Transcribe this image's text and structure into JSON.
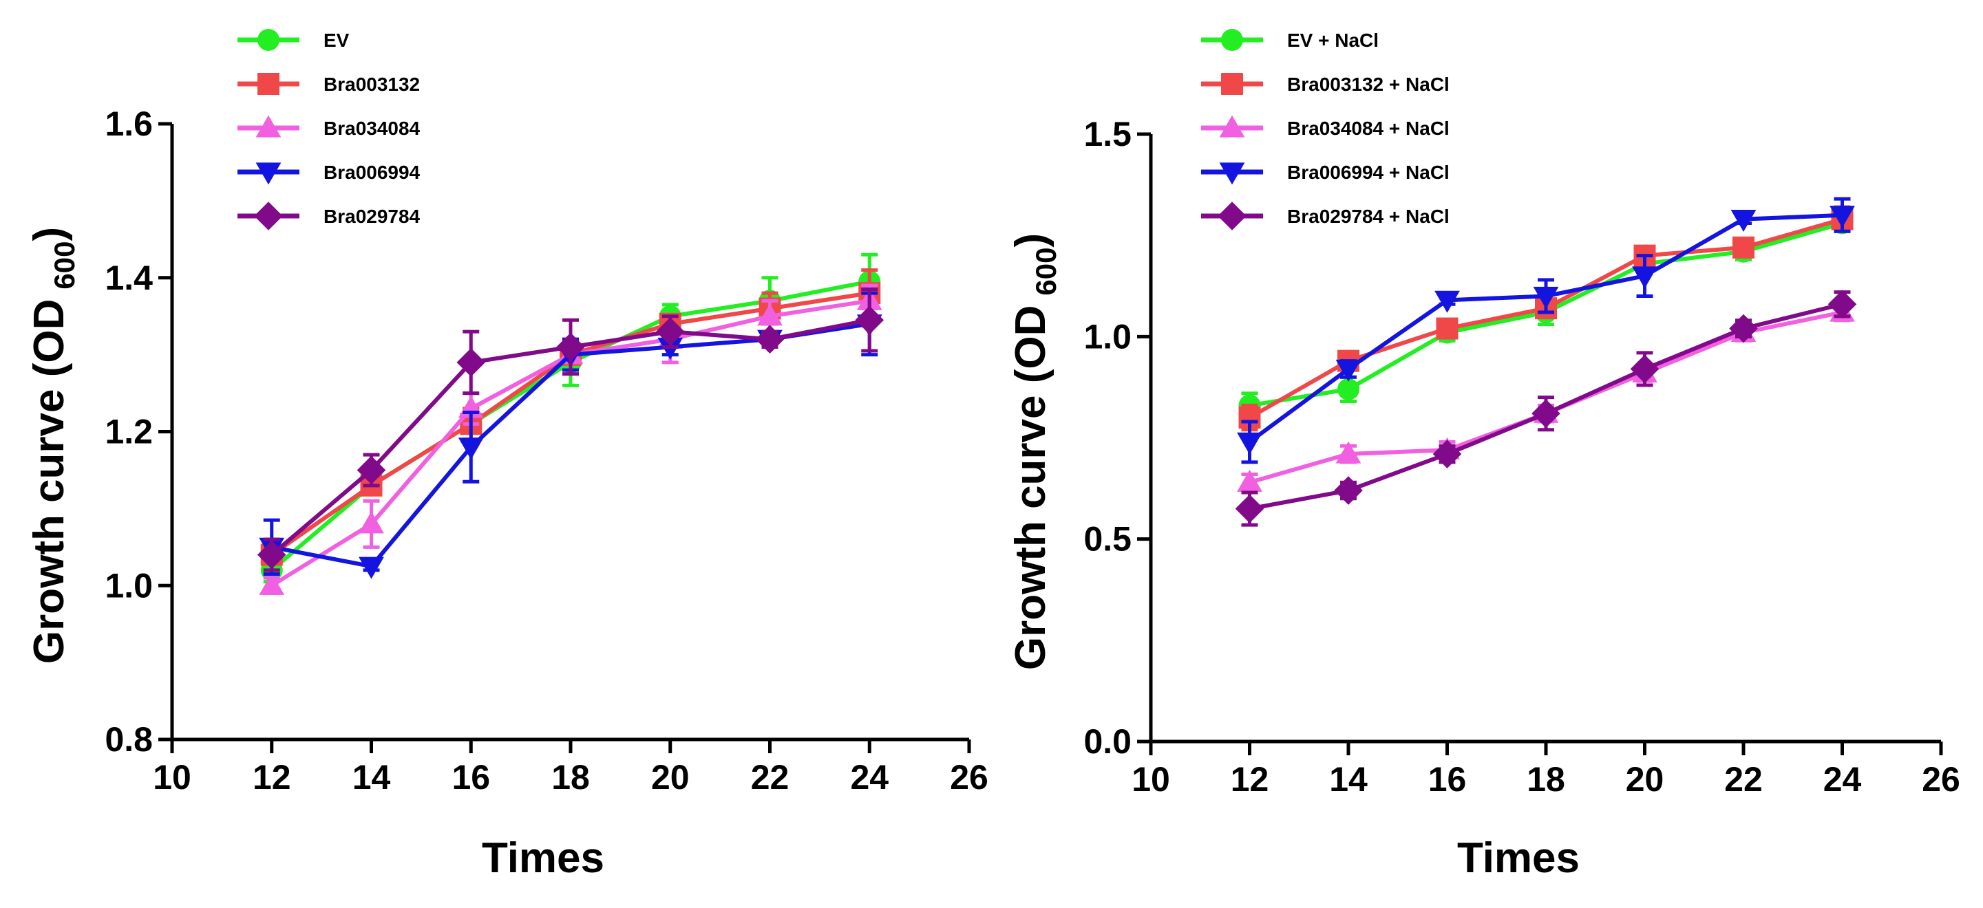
{
  "chart_data": [
    {
      "type": "line",
      "title": "",
      "xlabel": "Times",
      "ylabel": "Growth curve (OD",
      "ylabel_subscript": "600",
      "xlim": [
        10,
        26
      ],
      "ylim": [
        0.8,
        1.6
      ],
      "x_ticks": [
        10,
        12,
        14,
        16,
        18,
        20,
        22,
        24,
        26
      ],
      "y_ticks": [
        0.8,
        1.0,
        1.2,
        1.4,
        1.6
      ],
      "x_tick_labels": [
        "10",
        "12",
        "14",
        "16",
        "18",
        "20",
        "22",
        "24",
        "26"
      ],
      "y_tick_labels": [
        "0.8",
        "1.0",
        "1.2",
        "1.4",
        "1.6"
      ],
      "legend_position": "top-left",
      "grid": false,
      "x": [
        12,
        14,
        16,
        18,
        20,
        22,
        24
      ],
      "series": [
        {
          "name": "EV",
          "color": "#22ee22",
          "marker": "circle",
          "values": [
            1.02,
            1.13,
            1.21,
            1.29,
            1.35,
            1.37,
            1.395
          ],
          "errors": [
            0.015,
            0.01,
            0.02,
            0.03,
            0.015,
            0.03,
            0.035
          ]
        },
        {
          "name": "Bra003132",
          "color": "#f04848",
          "marker": "square",
          "values": [
            1.04,
            1.13,
            1.21,
            1.3,
            1.34,
            1.36,
            1.38
          ],
          "errors": [
            0.02,
            0.01,
            0.02,
            0.02,
            0.01,
            0.02,
            0.03
          ]
        },
        {
          "name": "Bra034084",
          "color": "#f060e0",
          "marker": "triangle-up",
          "values": [
            1.0,
            1.08,
            1.23,
            1.3,
            1.32,
            1.35,
            1.37
          ],
          "errors": [
            0.01,
            0.03,
            0.02,
            0.02,
            0.03,
            0.02,
            0.02
          ]
        },
        {
          "name": "Bra006994",
          "color": "#1414e0",
          "marker": "triangle-down",
          "values": [
            1.05,
            1.025,
            1.18,
            1.3,
            1.31,
            1.32,
            1.34
          ],
          "errors": [
            0.035,
            0.005,
            0.045,
            0.02,
            0.01,
            0.005,
            0.04
          ]
        },
        {
          "name": "Bra029784",
          "color": "#800a8a",
          "marker": "diamond",
          "values": [
            1.04,
            1.15,
            1.29,
            1.31,
            1.33,
            1.32,
            1.345
          ],
          "errors": [
            0.02,
            0.02,
            0.04,
            0.035,
            0.02,
            0.01,
            0.04
          ]
        }
      ]
    },
    {
      "type": "line",
      "title": "",
      "xlabel": "Times",
      "ylabel": "Growth curve (OD",
      "ylabel_subscript": "600",
      "xlim": [
        10,
        26
      ],
      "ylim": [
        0.0,
        1.5
      ],
      "x_ticks": [
        10,
        12,
        14,
        16,
        18,
        20,
        22,
        24,
        26
      ],
      "y_ticks": [
        0.0,
        0.5,
        1.0,
        1.5
      ],
      "x_tick_labels": [
        "10",
        "12",
        "14",
        "16",
        "18",
        "20",
        "22",
        "24",
        "26"
      ],
      "y_tick_labels": [
        "0.0",
        "0.5",
        "1.0",
        "1.5"
      ],
      "legend_position": "top-left",
      "grid": false,
      "x": [
        12,
        14,
        16,
        18,
        20,
        22,
        24
      ],
      "series": [
        {
          "name": "EV + NaCl",
          "color": "#22ee22",
          "marker": "circle",
          "values": [
            0.83,
            0.87,
            1.01,
            1.06,
            1.18,
            1.21,
            1.28
          ],
          "errors": [
            0.03,
            0.03,
            0.02,
            0.03,
            0.02,
            0.02,
            0.02
          ]
        },
        {
          "name": "Bra003132 + NaCl",
          "color": "#f04848",
          "marker": "square",
          "values": [
            0.8,
            0.94,
            1.02,
            1.07,
            1.2,
            1.22,
            1.29
          ],
          "errors": [
            0.03,
            0.02,
            0.02,
            0.02,
            0.02,
            0.02,
            0.03
          ]
        },
        {
          "name": "Bra034084 + NaCl",
          "color": "#f060e0",
          "marker": "triangle-up",
          "values": [
            0.64,
            0.71,
            0.72,
            0.81,
            0.91,
            1.01,
            1.06
          ],
          "errors": [
            0.02,
            0.02,
            0.02,
            0.02,
            0.02,
            0.02,
            0.02
          ]
        },
        {
          "name": "Bra006994 + NaCl",
          "color": "#1414e0",
          "marker": "triangle-down",
          "values": [
            0.74,
            0.92,
            1.09,
            1.1,
            1.15,
            1.29,
            1.3
          ],
          "errors": [
            0.05,
            0.02,
            0.01,
            0.04,
            0.05,
            0.01,
            0.04
          ]
        },
        {
          "name": "Bra029784 + NaCl",
          "color": "#800a8a",
          "marker": "diamond",
          "values": [
            0.575,
            0.62,
            0.71,
            0.81,
            0.92,
            1.02,
            1.08
          ],
          "errors": [
            0.04,
            0.02,
            0.02,
            0.04,
            0.04,
            0.02,
            0.03
          ]
        }
      ]
    }
  ]
}
